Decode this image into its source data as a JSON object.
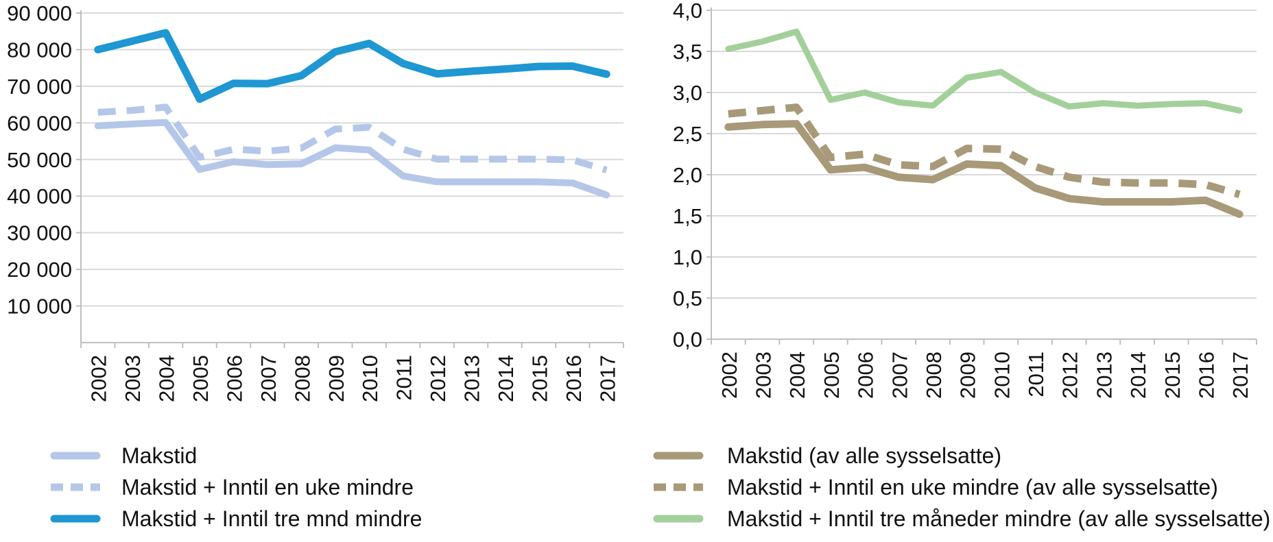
{
  "style_colors": {
    "background": "#ffffff",
    "gridline": "#d9d9d9",
    "axis": "#bfbfbf",
    "text": "#111111",
    "light_blue": "#b5c7e8",
    "strong_blue": "#1e97d3",
    "tan": "#a89a78",
    "green": "#a3d09a"
  },
  "chart_data": [
    {
      "id": "employment-counts",
      "type": "line",
      "title": "",
      "xlabel": "",
      "ylabel": "",
      "grid": true,
      "legend_position": "bottom-left",
      "categories": [
        "2002",
        "2003",
        "2004",
        "2005",
        "2006",
        "2007",
        "2008",
        "2009",
        "2010",
        "2011",
        "2012",
        "2013",
        "2014",
        "2015",
        "2016",
        "2017"
      ],
      "y_axis": {
        "min": 0,
        "max": 90000,
        "ticks": [
          {
            "value": 10000,
            "label": "10 000"
          },
          {
            "value": 20000,
            "label": "20 000"
          },
          {
            "value": 30000,
            "label": "30 000"
          },
          {
            "value": 40000,
            "label": "40 000"
          },
          {
            "value": 50000,
            "label": "50 000"
          },
          {
            "value": 60000,
            "label": "60 000"
          },
          {
            "value": 70000,
            "label": "70 000"
          },
          {
            "value": 80000,
            "label": "80 000"
          },
          {
            "value": 90000,
            "label": "90 000"
          }
        ]
      },
      "series": [
        {
          "name": "Makstid",
          "color": "#b5c7e8",
          "dash": "solid",
          "stroke_width": 10,
          "values": [
            59200,
            59700,
            60100,
            47300,
            49400,
            48600,
            48800,
            53200,
            52600,
            45500,
            43900,
            43900,
            43900,
            43900,
            43600,
            40300
          ]
        },
        {
          "name": "Makstid + Inntil en uke mindre",
          "color": "#b5c7e8",
          "dash": "dashed",
          "stroke_width": 10,
          "values": [
            62900,
            63400,
            64300,
            50600,
            52800,
            52300,
            53100,
            58300,
            58800,
            52800,
            50100,
            50100,
            50100,
            50100,
            49900,
            47100
          ]
        },
        {
          "name": "Makstid + Inntil tre mnd mindre",
          "color": "#1e97d3",
          "dash": "solid",
          "stroke_width": 11,
          "values": [
            80000,
            82300,
            84600,
            66500,
            70800,
            70700,
            72900,
            79400,
            81700,
            76200,
            73400,
            74100,
            74700,
            75400,
            75500,
            73300
          ]
        }
      ]
    },
    {
      "id": "share-of-employed",
      "type": "line",
      "title": "",
      "xlabel": "",
      "ylabel": "",
      "grid": true,
      "legend_position": "bottom-left",
      "categories": [
        "2002",
        "2003",
        "2004",
        "2005",
        "2006",
        "2007",
        "2008",
        "2009",
        "2010",
        "2011",
        "2012",
        "2013",
        "2014",
        "2015",
        "2016",
        "2017"
      ],
      "y_axis": {
        "min": 0,
        "max": 4,
        "ticks": [
          {
            "value": 0.0,
            "label": "0,0"
          },
          {
            "value": 0.5,
            "label": "0,5"
          },
          {
            "value": 1.0,
            "label": "1,0"
          },
          {
            "value": 1.5,
            "label": "1,5"
          },
          {
            "value": 2.0,
            "label": "2,0"
          },
          {
            "value": 2.5,
            "label": "2,5"
          },
          {
            "value": 3.0,
            "label": "3,0"
          },
          {
            "value": 3.5,
            "label": "3,5"
          },
          {
            "value": 4.0,
            "label": "4,0"
          }
        ]
      },
      "series": [
        {
          "name": "Makstid (av alle sysselsatte)",
          "color": "#a89a78",
          "dash": "solid",
          "stroke_width": 11,
          "values": [
            2.58,
            2.61,
            2.62,
            2.06,
            2.09,
            1.97,
            1.94,
            2.13,
            2.11,
            1.84,
            1.71,
            1.67,
            1.67,
            1.67,
            1.69,
            1.52
          ]
        },
        {
          "name": "Makstid + Inntil en uke mindre (av alle sysselsatte)",
          "color": "#a89a78",
          "dash": "dashed",
          "stroke_width": 11,
          "values": [
            2.74,
            2.78,
            2.82,
            2.21,
            2.25,
            2.12,
            2.1,
            2.32,
            2.31,
            2.1,
            1.97,
            1.91,
            1.9,
            1.9,
            1.88,
            1.76
          ]
        },
        {
          "name": "Makstid + Inntil tre måneder mindre (av alle sysselsatte)",
          "color": "#a3d09a",
          "dash": "solid",
          "stroke_width": 9,
          "values": [
            3.53,
            3.62,
            3.74,
            2.91,
            3.0,
            2.88,
            2.84,
            3.18,
            3.25,
            3.0,
            2.83,
            2.87,
            2.84,
            2.86,
            2.87,
            2.78
          ]
        }
      ]
    }
  ]
}
